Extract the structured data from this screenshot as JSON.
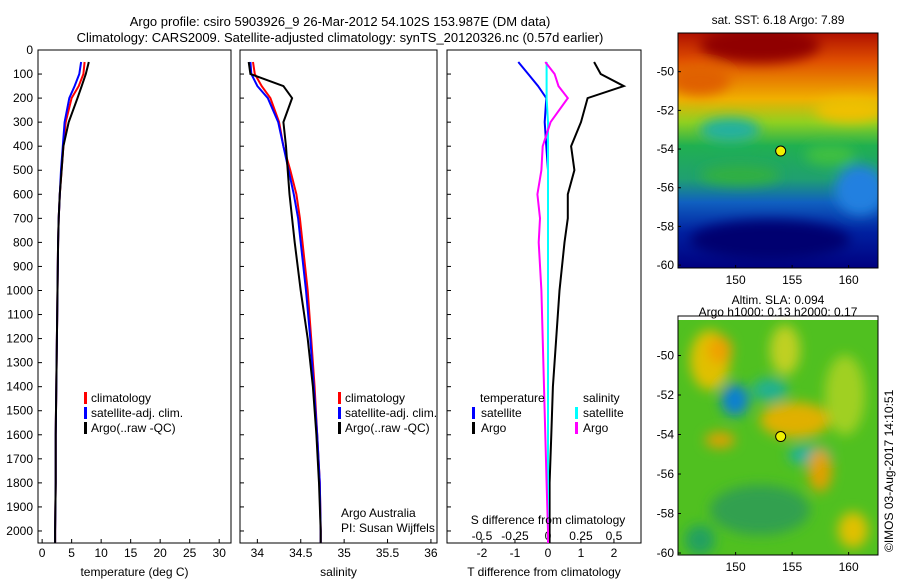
{
  "title": {
    "line1": "Argo profile: csiro 5903926_9 26-Mar-2012 54.102S 153.987E (DM data)",
    "line2": "Climatology: CARS2009. Satellite-adjusted climatology: synTS_20120326.nc (0.57d earlier)"
  },
  "colors": {
    "climatology": "#ff0000",
    "satellite": "#0000ff",
    "argo": "#000000",
    "sal_satellite": "#00ffff",
    "sal_argo": "#ff00ff"
  },
  "chart_data": [
    {
      "type": "line",
      "id": "temperature",
      "xlabel": "temperature (deg C)",
      "ylabel": "",
      "xlim": [
        -0.7,
        32
      ],
      "ylim": [
        2050,
        0
      ],
      "xticks": [
        0,
        5,
        10,
        15,
        20,
        25,
        30
      ],
      "yticks": [
        0,
        100,
        200,
        300,
        400,
        500,
        600,
        700,
        800,
        900,
        1000,
        1100,
        1200,
        1300,
        1400,
        1500,
        1600,
        1700,
        1800,
        1900,
        2000
      ],
      "depth": [
        50,
        100,
        150,
        200,
        300,
        400,
        500,
        600,
        700,
        800,
        1000,
        1200,
        1400,
        1600,
        1800,
        2000,
        2050
      ],
      "series": [
        {
          "name": "climatology",
          "color": "#ff0000",
          "values": [
            7.2,
            7.0,
            6.2,
            5.0,
            4.0,
            3.6,
            3.3,
            3.0,
            2.8,
            2.7,
            2.6,
            2.5,
            2.4,
            2.3,
            2.3,
            2.2,
            2.2
          ]
        },
        {
          "name": "satellite-adj. clim.",
          "color": "#0000ff",
          "values": [
            6.6,
            6.3,
            5.5,
            4.6,
            3.8,
            3.5,
            3.2,
            3.0,
            2.8,
            2.7,
            2.6,
            2.5,
            2.4,
            2.3,
            2.3,
            2.2,
            2.2
          ]
        },
        {
          "name": "Argo(..raw -QC)",
          "color": "#000000",
          "values": [
            7.9,
            7.4,
            6.7,
            6.0,
            4.5,
            3.6,
            3.3,
            3.0,
            2.8,
            2.7,
            2.6,
            2.5,
            2.4,
            2.3,
            2.3,
            2.2,
            2.2
          ]
        }
      ],
      "legend": [
        "climatology",
        "satellite-adj. clim.",
        "Argo(..raw -QC)"
      ]
    },
    {
      "type": "line",
      "id": "salinity",
      "xlabel": "salinity",
      "xlim": [
        33.8,
        36.07
      ],
      "ylim": [
        2050,
        0
      ],
      "xticks": [
        34,
        34.5,
        35,
        35.5,
        36
      ],
      "depth": [
        50,
        100,
        150,
        200,
        300,
        400,
        500,
        600,
        700,
        800,
        1000,
        1200,
        1400,
        1600,
        1800,
        2000,
        2050
      ],
      "series": [
        {
          "name": "climatology",
          "color": "#ff0000",
          "values": [
            33.95,
            33.97,
            34.05,
            34.15,
            34.25,
            34.3,
            34.38,
            34.45,
            34.49,
            34.52,
            34.58,
            34.62,
            34.66,
            34.69,
            34.72,
            34.73,
            34.73
          ]
        },
        {
          "name": "satellite-adj. clim.",
          "color": "#0000ff",
          "values": [
            33.92,
            33.93,
            34.0,
            34.12,
            34.24,
            34.3,
            34.36,
            34.42,
            34.47,
            34.5,
            34.56,
            34.61,
            34.65,
            34.69,
            34.72,
            34.73,
            34.73
          ]
        },
        {
          "name": "Argo(..raw -QC)",
          "color": "#000000",
          "values": [
            33.9,
            33.92,
            34.3,
            34.4,
            34.3,
            34.33,
            34.35,
            34.37,
            34.4,
            34.43,
            34.5,
            34.58,
            34.64,
            34.68,
            34.71,
            34.73,
            34.73
          ]
        }
      ],
      "legend": [
        "climatology",
        "satellite-adj. clim.",
        "Argo(..raw -QC)"
      ],
      "annotation": [
        "Argo Australia",
        "PI: Susan Wijffels"
      ]
    },
    {
      "type": "line",
      "id": "difference",
      "xlabel": "T difference from climatology",
      "x2label": "S difference from climatology",
      "xlim": [
        -3.06,
        2.82
      ],
      "ylim": [
        2050,
        0
      ],
      "xticks": [
        -2,
        -1,
        0,
        1,
        2
      ],
      "x2ticks": [
        -0.5,
        -0.25,
        0,
        0.25,
        0.5
      ],
      "x2ticklabels": [
        "-0.5",
        "-0.25",
        "0",
        "0.25",
        "0.5"
      ],
      "depth": [
        50,
        100,
        150,
        200,
        300,
        400,
        500,
        600,
        700,
        800,
        1000,
        1200,
        1400,
        1600,
        1800,
        2000,
        2050
      ],
      "series": [
        {
          "name": "T satellite",
          "color": "#0000ff",
          "units": "T",
          "values": [
            -0.9,
            -0.6,
            -0.3,
            -0.05,
            -0.1,
            -0.05,
            0,
            0,
            0,
            0,
            0,
            0,
            0,
            0,
            0,
            0,
            0
          ]
        },
        {
          "name": "T Argo",
          "color": "#000000",
          "units": "T",
          "values": [
            1.4,
            1.6,
            2.3,
            1.2,
            1.0,
            0.7,
            0.8,
            0.6,
            0.6,
            0.5,
            0.35,
            0.25,
            0.15,
            0.1,
            0.05,
            0.05,
            0.05
          ]
        },
        {
          "name": "S satellite",
          "color": "#00ffff",
          "units": "S",
          "values": [
            -0.01,
            -0.01,
            -0.01,
            -0.01,
            0,
            0,
            0,
            0,
            0,
            0,
            0,
            0,
            0,
            0,
            0,
            0,
            0
          ]
        },
        {
          "name": "S Argo",
          "color": "#ff00ff",
          "units": "S",
          "values": [
            -0.02,
            0.05,
            0.08,
            0.15,
            0.02,
            -0.04,
            -0.05,
            -0.08,
            -0.06,
            -0.07,
            -0.05,
            -0.04,
            -0.03,
            -0.02,
            -0.01,
            0,
            0
          ]
        }
      ],
      "legend": {
        "temperature": "temperature",
        "salinity": "salinity",
        "satellite": "satellite",
        "argo": "Argo"
      }
    }
  ],
  "maps": {
    "sst": {
      "title": "sat. SST: 6.18 Argo: 7.89",
      "xticks": [
        150,
        155,
        160
      ],
      "yticks": [
        -50,
        -52,
        -54,
        -56,
        -58,
        -60
      ],
      "xlim": [
        144.9,
        162.6
      ],
      "ylim": [
        -60.15,
        -48.0
      ],
      "float_lon": 153.987,
      "float_lat": -54.102
    },
    "sla": {
      "title1": "Altim. SLA: 0.094",
      "title2": "Argo h1000: 0.13 h2000: 0.17",
      "xticks": [
        150,
        155,
        160
      ],
      "yticks": [
        -50,
        -52,
        -54,
        -56,
        -58,
        -60
      ],
      "xlim": [
        144.9,
        162.6
      ],
      "ylim": [
        -60.1,
        -48.0
      ],
      "float_lon": 153.987,
      "float_lat": -54.102
    }
  },
  "credit": "©IMOS 03-Aug-2017 14:10:51"
}
